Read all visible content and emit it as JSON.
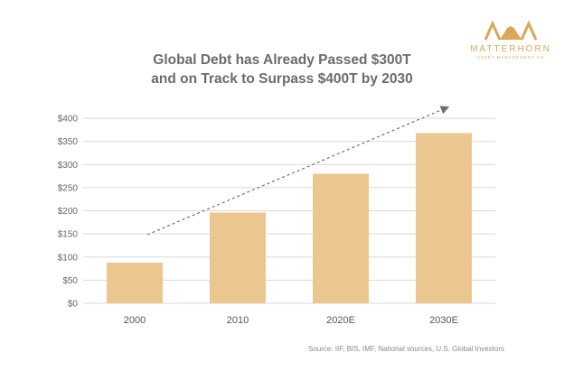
{
  "chart_data": {
    "type": "bar",
    "title_lines": [
      "Global Debt has Already Passed $300T",
      "and on Track to Surpass $400T by 2030"
    ],
    "categories": [
      "2000",
      "2010",
      "2020E",
      "2030E"
    ],
    "values": [
      88,
      196,
      280,
      368
    ],
    "ylim": [
      0,
      400
    ],
    "yticks": [
      0,
      50,
      100,
      150,
      200,
      250,
      300,
      350,
      400
    ],
    "ytick_labels": [
      "$0",
      "$50",
      "$100",
      "$150",
      "$200",
      "$250",
      "$300",
      "$350",
      "$400"
    ],
    "grid": true,
    "bar_color": "#ebc68f",
    "trend_arrow": true,
    "source": "Source: IIF, BIS, IMF, National sources, U.S. Global Investors"
  },
  "logo": {
    "name": "MATTERHORN",
    "subtitle": "ASSET MANAGEMENT AG",
    "mark": "MAM",
    "color": "#d9a85a"
  }
}
